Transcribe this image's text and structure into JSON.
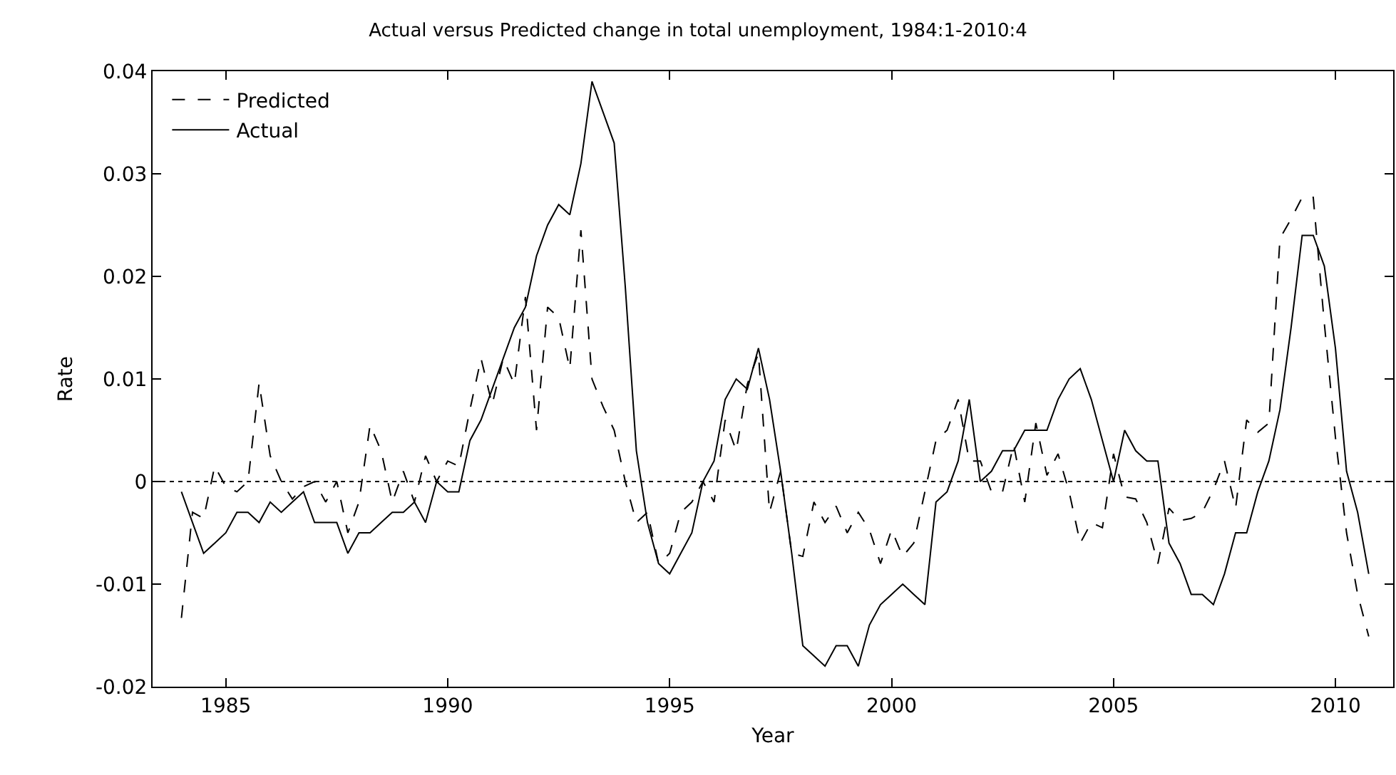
{
  "chart_data": {
    "type": "line",
    "title": "Actual versus Predicted change in total unemployment, 1984:1-2010:4",
    "xlabel": "Year",
    "ylabel": "Rate",
    "x": [
      1984,
      1984.25,
      1984.5,
      1984.75,
      1985,
      1985.25,
      1985.5,
      1985.75,
      1986,
      1986.25,
      1986.5,
      1986.75,
      1987,
      1987.25,
      1987.5,
      1987.75,
      1988,
      1988.25,
      1988.5,
      1988.75,
      1989,
      1989.25,
      1989.5,
      1989.75,
      1990,
      1990.25,
      1990.5,
      1990.75,
      1991,
      1991.25,
      1991.5,
      1991.75,
      1992,
      1992.25,
      1992.5,
      1992.75,
      1993,
      1993.25,
      1993.5,
      1993.75,
      1994,
      1994.25,
      1994.5,
      1994.75,
      1995,
      1995.25,
      1995.5,
      1995.75,
      1996,
      1996.25,
      1996.5,
      1996.75,
      1997,
      1997.25,
      1997.5,
      1997.75,
      1998,
      1998.25,
      1998.5,
      1998.75,
      1999,
      1999.25,
      1999.5,
      1999.75,
      2000,
      2000.25,
      2000.5,
      2000.75,
      2001,
      2001.25,
      2001.5,
      2001.75,
      2002,
      2002.25,
      2002.5,
      2002.75,
      2003,
      2003.25,
      2003.5,
      2003.75,
      2004,
      2004.25,
      2004.5,
      2004.75,
      2005,
      2005.25,
      2005.5,
      2005.75,
      2006,
      2006.25,
      2006.5,
      2006.75,
      2007,
      2007.25,
      2007.5,
      2007.75,
      2008,
      2008.25,
      2008.5,
      2008.75,
      2009,
      2009.25,
      2009.5,
      2009.75,
      2010,
      2010.25,
      2010.5,
      2010.75
    ],
    "series": [
      {
        "name": "Predicted",
        "color": "#000000",
        "line_style": "dashed",
        "values": [
          -0.0133,
          -0.003,
          -0.0036,
          0.0015,
          -0.0005,
          -0.001,
          0.0,
          0.0096,
          0.0025,
          0.0,
          -0.0017,
          -0.0005,
          0.0,
          -0.002,
          0.0,
          -0.005,
          -0.002,
          0.0055,
          0.003,
          -0.002,
          0.001,
          -0.002,
          0.0025,
          0.0,
          0.002,
          0.0015,
          0.007,
          0.012,
          0.0075,
          0.012,
          0.0095,
          0.018,
          0.005,
          0.017,
          0.016,
          0.011,
          0.0245,
          0.01,
          0.0073,
          0.005,
          0.0,
          -0.004,
          -0.003,
          -0.008,
          -0.007,
          -0.003,
          -0.002,
          0.0,
          -0.002,
          0.006,
          0.003,
          0.0095,
          0.0125,
          -0.003,
          0.001,
          -0.007,
          -0.0073,
          -0.002,
          -0.004,
          -0.0024,
          -0.005,
          -0.003,
          -0.0047,
          -0.008,
          -0.0047,
          -0.0073,
          -0.006,
          -0.001,
          0.004,
          0.005,
          0.008,
          0.002,
          0.002,
          -0.001,
          -0.001,
          0.0036,
          -0.002,
          0.0057,
          0.0006,
          0.0027,
          -0.001,
          -0.006,
          -0.004,
          -0.0045,
          0.0027,
          -0.0015,
          -0.0017,
          -0.004,
          -0.008,
          -0.0026,
          -0.0038,
          -0.0036,
          -0.003,
          -0.0008,
          0.002,
          -0.0026,
          0.006,
          0.0048,
          0.0057,
          0.0237,
          0.0256,
          0.0277,
          0.0277,
          0.0154,
          0.0043,
          -0.005,
          -0.011,
          -0.0151
        ]
      },
      {
        "name": "Actual",
        "color": "#000000",
        "line_style": "solid",
        "values": [
          -0.001,
          -0.004,
          -0.007,
          -0.006,
          -0.005,
          -0.003,
          -0.003,
          -0.004,
          -0.002,
          -0.003,
          -0.002,
          -0.001,
          -0.004,
          -0.004,
          -0.004,
          -0.007,
          -0.005,
          -0.005,
          -0.004,
          -0.003,
          -0.003,
          -0.002,
          -0.004,
          0.0,
          -0.001,
          -0.001,
          0.004,
          0.006,
          0.009,
          0.012,
          0.015,
          0.017,
          0.022,
          0.025,
          0.027,
          0.026,
          0.031,
          0.039,
          0.036,
          0.033,
          0.019,
          0.003,
          -0.004,
          -0.008,
          -0.009,
          -0.007,
          -0.005,
          0.0,
          0.002,
          0.008,
          0.01,
          0.009,
          0.013,
          0.008,
          0.001,
          -0.007,
          -0.016,
          -0.017,
          -0.018,
          -0.016,
          -0.016,
          -0.018,
          -0.014,
          -0.012,
          -0.011,
          -0.01,
          -0.011,
          -0.012,
          -0.002,
          -0.001,
          0.002,
          0.008,
          0.0,
          0.001,
          0.003,
          0.003,
          0.005,
          0.005,
          0.005,
          0.008,
          0.01,
          0.011,
          0.008,
          0.004,
          0.0,
          0.005,
          0.003,
          0.002,
          0.002,
          -0.006,
          -0.008,
          -0.011,
          -0.011,
          -0.012,
          -0.009,
          -0.005,
          -0.005,
          -0.001,
          0.002,
          0.007,
          0.015,
          0.024,
          0.024,
          0.021,
          0.013,
          0.001,
          -0.003,
          -0.009
        ]
      }
    ],
    "xlim": [
      1983.35,
      2011.3
    ],
    "ylim": [
      -0.02,
      0.04
    ],
    "xticks": [
      1985,
      1990,
      1995,
      2000,
      2005,
      2010
    ],
    "yticks": [
      -0.02,
      -0.01,
      0,
      0.01,
      0.02,
      0.03,
      0.04
    ],
    "ref_lines": [
      {
        "axis": "y",
        "value": 0,
        "color": "#000000",
        "line_style": "dotted"
      }
    ],
    "legend": "top left",
    "marker": "none"
  }
}
